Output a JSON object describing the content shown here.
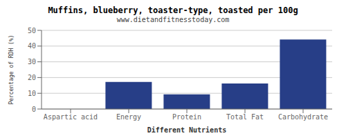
{
  "chart_data": {
    "type": "bar",
    "title": "Muffins, blueberry, toaster-type, toasted per 100g",
    "subtitle": "www.dietandfitnesstoday.com",
    "xlabel": "Different Nutrients",
    "ylabel": "Percentage of RDH (%)",
    "categories": [
      "Aspartic acid",
      "Energy",
      "Protein",
      "Total Fat",
      "Carbohydrate"
    ],
    "values": [
      0.0,
      17.2,
      9.3,
      16.2,
      44.2
    ],
    "color": "#273e87",
    "ylim": [
      0,
      50
    ],
    "yticks": [
      0,
      10,
      20,
      30,
      40,
      50
    ],
    "grid": true
  }
}
